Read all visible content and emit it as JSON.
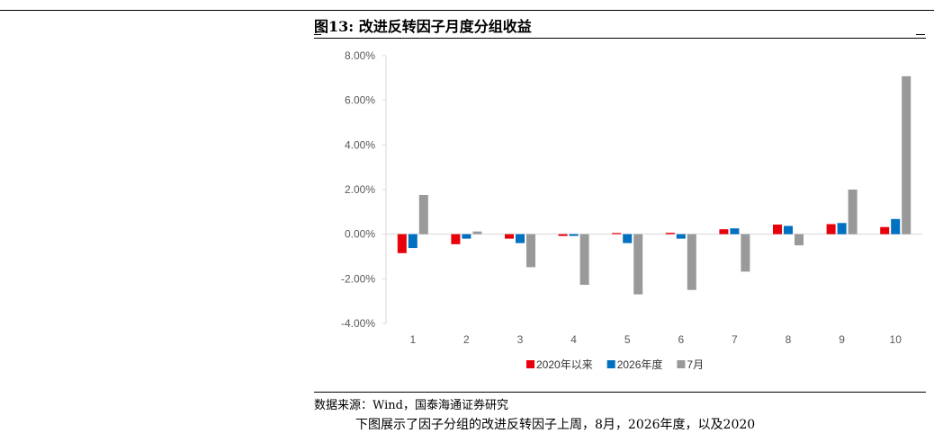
{
  "figure": {
    "title": "图13: 改进反转因子月度分组收益",
    "source": "数据来源：Wind，国泰海通证券研究",
    "body_text": "下图展示了因子分组的改进反转因子上周，8月，2026年度，以及2020"
  },
  "colors": {
    "series1": "#e8000b",
    "series2": "#0070c0",
    "series3": "#999999",
    "axis": "#d9d9d9"
  },
  "chart_data": {
    "type": "bar",
    "categories": [
      "1",
      "2",
      "3",
      "4",
      "5",
      "6",
      "7",
      "8",
      "9",
      "10"
    ],
    "series": [
      {
        "name": "2020年以来",
        "values": [
          -0.85,
          -0.45,
          -0.2,
          -0.08,
          0.05,
          0.06,
          0.22,
          0.43,
          0.45,
          0.32
        ]
      },
      {
        "name": "2026年度",
        "values": [
          -0.62,
          -0.2,
          -0.4,
          -0.08,
          -0.4,
          -0.2,
          0.26,
          0.37,
          0.5,
          0.68
        ]
      },
      {
        "name": "7月",
        "values": [
          1.76,
          0.12,
          -1.48,
          -2.27,
          -2.7,
          -2.5,
          -1.68,
          -0.5,
          2.0,
          7.08
        ]
      }
    ],
    "ylim": [
      -4,
      8
    ],
    "yticks": [
      -4,
      -2,
      0,
      2,
      4,
      6,
      8
    ],
    "ytick_labels": [
      "-4.00%",
      "-2.00%",
      "0.00%",
      "2.00%",
      "4.00%",
      "6.00%",
      "8.00%"
    ],
    "xlabel": "",
    "ylabel": "",
    "legend": "bottom-center",
    "grid": false
  }
}
